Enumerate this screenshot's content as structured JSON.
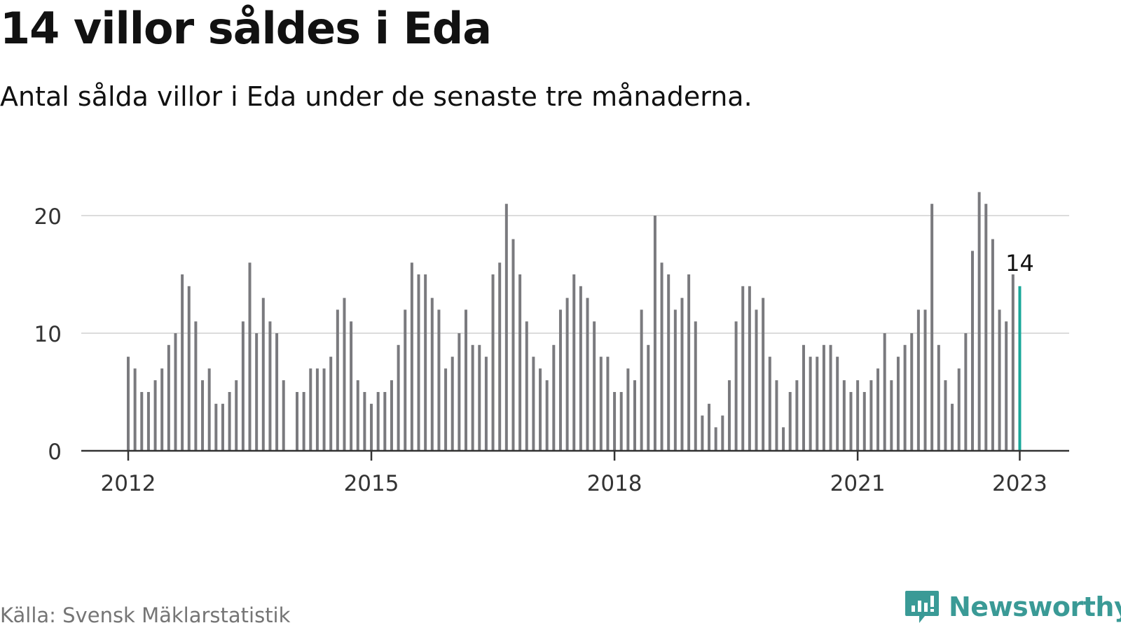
{
  "header": {
    "title": "14 villor såldes i Eda",
    "subtitle": "Antal sålda villor i Eda under de senaste tre månaderna."
  },
  "footer": {
    "source": "Källa: Svensk Mäklarstatistik",
    "brand": "Newsworthy",
    "brand_icon": "bar-chart-bubble-icon"
  },
  "colors": {
    "bar": "#7a7a7e",
    "highlight": "#1aa89a",
    "gridline": "#dcdcdc",
    "axis": "#333333",
    "brand": "#3a9a96"
  },
  "chart_data": {
    "type": "bar",
    "title": "14 villor såldes i Eda",
    "subtitle": "Antal sålda villor i Eda under de senaste tre månaderna.",
    "xlabel": "",
    "ylabel": "",
    "ylim": [
      0,
      22
    ],
    "yticks": [
      0,
      10,
      20
    ],
    "xtick_labels": [
      "2012",
      "2015",
      "2018",
      "2021",
      "2023"
    ],
    "grid": true,
    "legend": "none",
    "highlight_annotation": "14",
    "series": [
      {
        "values": [
          {
            "x": "2012-01",
            "y": 8
          },
          {
            "x": "2012-02",
            "y": 7
          },
          {
            "x": "2012-03",
            "y": 5
          },
          {
            "x": "2012-04",
            "y": 5
          },
          {
            "x": "2012-05",
            "y": 6
          },
          {
            "x": "2012-06",
            "y": 7
          },
          {
            "x": "2012-07",
            "y": 9
          },
          {
            "x": "2012-08",
            "y": 10
          },
          {
            "x": "2012-09",
            "y": 15
          },
          {
            "x": "2012-10",
            "y": 14
          },
          {
            "x": "2012-11",
            "y": 11
          },
          {
            "x": "2012-12",
            "y": 6
          },
          {
            "x": "2013-01",
            "y": 7
          },
          {
            "x": "2013-02",
            "y": 4
          },
          {
            "x": "2013-03",
            "y": 4
          },
          {
            "x": "2013-04",
            "y": 5
          },
          {
            "x": "2013-05",
            "y": 6
          },
          {
            "x": "2013-06",
            "y": 11
          },
          {
            "x": "2013-07",
            "y": 16
          },
          {
            "x": "2013-08",
            "y": 10
          },
          {
            "x": "2013-09",
            "y": 13
          },
          {
            "x": "2013-10",
            "y": 11
          },
          {
            "x": "2013-11",
            "y": 10
          },
          {
            "x": "2013-12",
            "y": 6
          },
          {
            "x": "2014-02",
            "y": 5
          },
          {
            "x": "2014-03",
            "y": 5
          },
          {
            "x": "2014-04",
            "y": 7
          },
          {
            "x": "2014-05",
            "y": 7
          },
          {
            "x": "2014-06",
            "y": 7
          },
          {
            "x": "2014-07",
            "y": 8
          },
          {
            "x": "2014-08",
            "y": 12
          },
          {
            "x": "2014-09",
            "y": 13
          },
          {
            "x": "2014-10",
            "y": 11
          },
          {
            "x": "2014-11",
            "y": 6
          },
          {
            "x": "2014-12",
            "y": 5
          },
          {
            "x": "2015-01",
            "y": 4
          },
          {
            "x": "2015-02",
            "y": 5
          },
          {
            "x": "2015-03",
            "y": 5
          },
          {
            "x": "2015-04",
            "y": 6
          },
          {
            "x": "2015-05",
            "y": 9
          },
          {
            "x": "2015-06",
            "y": 12
          },
          {
            "x": "2015-07",
            "y": 16
          },
          {
            "x": "2015-08",
            "y": 15
          },
          {
            "x": "2015-09",
            "y": 15
          },
          {
            "x": "2015-10",
            "y": 13
          },
          {
            "x": "2015-11",
            "y": 12
          },
          {
            "x": "2015-12",
            "y": 7
          },
          {
            "x": "2016-01",
            "y": 8
          },
          {
            "x": "2016-02",
            "y": 10
          },
          {
            "x": "2016-03",
            "y": 12
          },
          {
            "x": "2016-04",
            "y": 9
          },
          {
            "x": "2016-05",
            "y": 9
          },
          {
            "x": "2016-06",
            "y": 8
          },
          {
            "x": "2016-07",
            "y": 15
          },
          {
            "x": "2016-08",
            "y": 16
          },
          {
            "x": "2016-09",
            "y": 21
          },
          {
            "x": "2016-10",
            "y": 18
          },
          {
            "x": "2016-11",
            "y": 15
          },
          {
            "x": "2016-12",
            "y": 11
          },
          {
            "x": "2017-01",
            "y": 8
          },
          {
            "x": "2017-02",
            "y": 7
          },
          {
            "x": "2017-03",
            "y": 6
          },
          {
            "x": "2017-04",
            "y": 9
          },
          {
            "x": "2017-05",
            "y": 12
          },
          {
            "x": "2017-06",
            "y": 13
          },
          {
            "x": "2017-07",
            "y": 15
          },
          {
            "x": "2017-08",
            "y": 14
          },
          {
            "x": "2017-09",
            "y": 13
          },
          {
            "x": "2017-10",
            "y": 11
          },
          {
            "x": "2017-11",
            "y": 8
          },
          {
            "x": "2017-12",
            "y": 8
          },
          {
            "x": "2018-01",
            "y": 5
          },
          {
            "x": "2018-02",
            "y": 5
          },
          {
            "x": "2018-03",
            "y": 7
          },
          {
            "x": "2018-04",
            "y": 6
          },
          {
            "x": "2018-05",
            "y": 12
          },
          {
            "x": "2018-06",
            "y": 9
          },
          {
            "x": "2018-07",
            "y": 20
          },
          {
            "x": "2018-08",
            "y": 16
          },
          {
            "x": "2018-09",
            "y": 15
          },
          {
            "x": "2018-10",
            "y": 12
          },
          {
            "x": "2018-11",
            "y": 13
          },
          {
            "x": "2018-12",
            "y": 15
          },
          {
            "x": "2019-01",
            "y": 11
          },
          {
            "x": "2019-02",
            "y": 3
          },
          {
            "x": "2019-03",
            "y": 4
          },
          {
            "x": "2019-04",
            "y": 2
          },
          {
            "x": "2019-05",
            "y": 3
          },
          {
            "x": "2019-06",
            "y": 6
          },
          {
            "x": "2019-07",
            "y": 11
          },
          {
            "x": "2019-08",
            "y": 14
          },
          {
            "x": "2019-09",
            "y": 14
          },
          {
            "x": "2019-10",
            "y": 12
          },
          {
            "x": "2019-11",
            "y": 13
          },
          {
            "x": "2019-12",
            "y": 8
          },
          {
            "x": "2020-01",
            "y": 6
          },
          {
            "x": "2020-02",
            "y": 2
          },
          {
            "x": "2020-03",
            "y": 5
          },
          {
            "x": "2020-04",
            "y": 6
          },
          {
            "x": "2020-05",
            "y": 9
          },
          {
            "x": "2020-06",
            "y": 8
          },
          {
            "x": "2020-07",
            "y": 8
          },
          {
            "x": "2020-08",
            "y": 9
          },
          {
            "x": "2020-09",
            "y": 9
          },
          {
            "x": "2020-10",
            "y": 8
          },
          {
            "x": "2020-11",
            "y": 6
          },
          {
            "x": "2020-12",
            "y": 5
          },
          {
            "x": "2021-01",
            "y": 6
          },
          {
            "x": "2021-02",
            "y": 5
          },
          {
            "x": "2021-03",
            "y": 6
          },
          {
            "x": "2021-04",
            "y": 7
          },
          {
            "x": "2021-05",
            "y": 10
          },
          {
            "x": "2021-06",
            "y": 6
          },
          {
            "x": "2021-07",
            "y": 8
          },
          {
            "x": "2021-08",
            "y": 9
          },
          {
            "x": "2021-09",
            "y": 10
          },
          {
            "x": "2021-10",
            "y": 12
          },
          {
            "x": "2021-11",
            "y": 12
          },
          {
            "x": "2021-12",
            "y": 21
          },
          {
            "x": "2022-01",
            "y": 9
          },
          {
            "x": "2022-02",
            "y": 6
          },
          {
            "x": "2022-03",
            "y": 4
          },
          {
            "x": "2022-04",
            "y": 7
          },
          {
            "x": "2022-05",
            "y": 10
          },
          {
            "x": "2022-06",
            "y": 17
          },
          {
            "x": "2022-07",
            "y": 22
          },
          {
            "x": "2022-08",
            "y": 21
          },
          {
            "x": "2022-09",
            "y": 18
          },
          {
            "x": "2022-10",
            "y": 12
          },
          {
            "x": "2022-11",
            "y": 11
          },
          {
            "x": "2022-12",
            "y": 15
          },
          {
            "x": "2023-01",
            "y": 14
          }
        ]
      }
    ]
  }
}
